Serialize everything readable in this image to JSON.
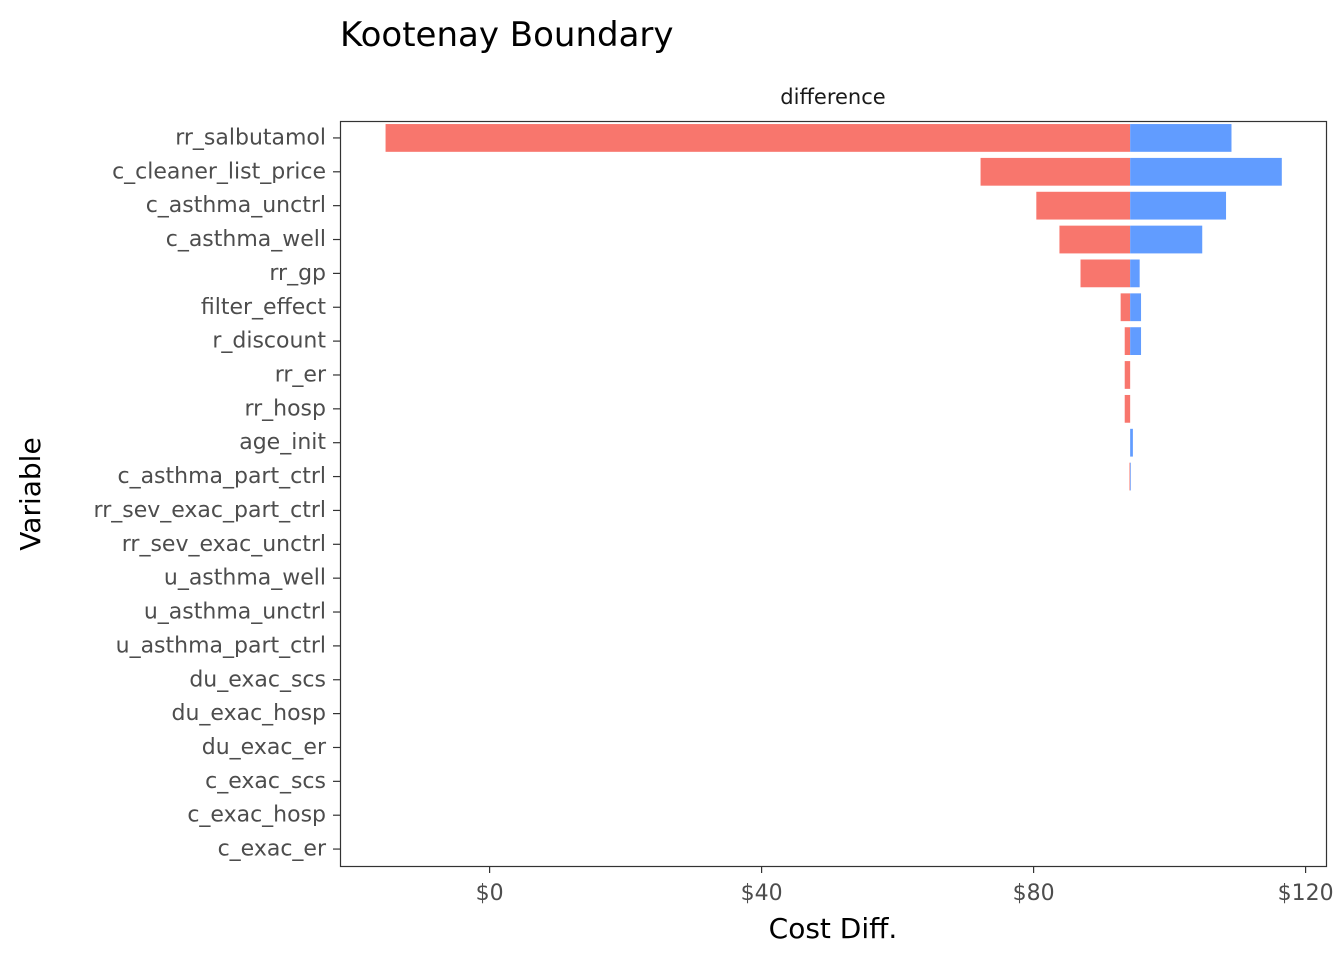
{
  "chart_data": {
    "type": "bar",
    "orientation": "horizontal",
    "title": "Kootenay Boundary",
    "facet_label": "difference",
    "xlabel": "Cost Diff.",
    "ylabel": "Variable",
    "xlim": [
      -22,
      123
    ],
    "baseline": 94.2,
    "x_ticks": [
      0,
      40,
      80,
      120
    ],
    "x_tick_labels": [
      "$0",
      "$40",
      "$80",
      "$120"
    ],
    "grid": false,
    "legend": "none",
    "colors": {
      "low": "#F8766D",
      "high": "#619CFF"
    },
    "categories": [
      "rr_salbutamol",
      "c_cleaner_list_price",
      "c_asthma_unctrl",
      "c_asthma_well",
      "rr_gp",
      "filter_effect",
      "r_discount",
      "rr_er",
      "rr_hosp",
      "age_init",
      "c_asthma_part_ctrl",
      "rr_sev_exac_part_ctrl",
      "rr_sev_exac_unctrl",
      "u_asthma_well",
      "u_asthma_unctrl",
      "u_asthma_part_ctrl",
      "du_exac_scs",
      "du_exac_hosp",
      "du_exac_er",
      "c_exac_scs",
      "c_exac_hosp",
      "c_exac_er"
    ],
    "series": [
      {
        "name": "",
        "color": "#F8766D",
        "values": [
          -15.3,
          72.2,
          80.4,
          83.8,
          86.9,
          92.8,
          93.4,
          93.4,
          93.4,
          94.2,
          94.1,
          94.2,
          94.2,
          94.2,
          94.2,
          94.2,
          94.2,
          94.2,
          94.2,
          94.2,
          94.2,
          94.2
        ]
      },
      {
        "name": "",
        "color": "#619CFF",
        "values": [
          109.1,
          116.5,
          108.3,
          104.8,
          95.6,
          95.8,
          95.8,
          94.2,
          94.2,
          94.6,
          94.3,
          94.2,
          94.2,
          94.2,
          94.2,
          94.2,
          94.2,
          94.2,
          94.2,
          94.2,
          94.2,
          94.2
        ]
      }
    ]
  }
}
